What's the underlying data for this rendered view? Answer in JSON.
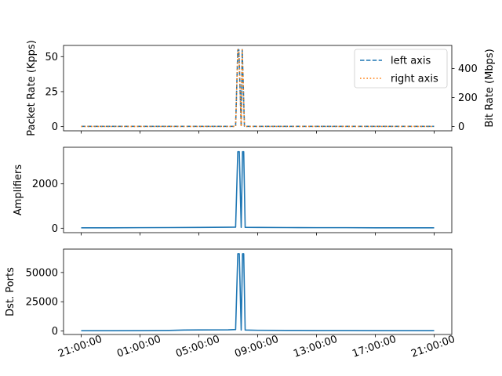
{
  "chart_data": [
    {
      "type": "line",
      "title": "",
      "xlabel": "",
      "ylabel": "Packet Rate (Kpps)",
      "y2label": "Bit Rate (Mbps)",
      "ylim": [
        -3,
        58
      ],
      "y2lim": [
        -30,
        560
      ],
      "yticks": [
        "0",
        "25",
        "50"
      ],
      "yticks_values": [
        0,
        25,
        50
      ],
      "y2ticks": [
        "0",
        "200",
        "400"
      ],
      "y2ticks_values": [
        0,
        200,
        400
      ],
      "legend_position": "top-right",
      "series": [
        {
          "name": "left axis",
          "axis": "left",
          "color": "#1f77b4",
          "style": "dashed",
          "x": [
            0,
            10.5,
            10.65,
            10.72,
            10.88,
            10.95,
            11.1,
            24
          ],
          "values": [
            0.2,
            0.2,
            55,
            55,
            0.2,
            55,
            0.2,
            0.2
          ]
        },
        {
          "name": "right axis",
          "axis": "right",
          "color": "#ff7f0e",
          "style": "dotted",
          "x": [
            0,
            10.5,
            10.65,
            10.72,
            10.88,
            10.95,
            11.1,
            24
          ],
          "values": [
            0,
            0,
            530,
            530,
            0,
            530,
            0,
            0
          ]
        }
      ]
    },
    {
      "type": "line",
      "title": "",
      "xlabel": "",
      "ylabel": "Amplifiers",
      "ylim": [
        -200,
        3650
      ],
      "yticks": [
        "0",
        "2000"
      ],
      "yticks_values": [
        0,
        2000
      ],
      "series": [
        {
          "color": "#1f77b4",
          "x": [
            0,
            2,
            4,
            6,
            8,
            10,
            10.5,
            10.65,
            10.75,
            10.88,
            10.97,
            11.05,
            11.15,
            12,
            14,
            16,
            18,
            20,
            22,
            24
          ],
          "values": [
            20,
            20,
            25,
            30,
            35,
            45,
            50,
            3450,
            3450,
            40,
            3450,
            3450,
            40,
            35,
            30,
            25,
            25,
            20,
            20,
            20
          ]
        }
      ]
    },
    {
      "type": "line",
      "title": "",
      "xlabel": "",
      "ylabel": "Dst. Ports",
      "ylim": [
        -3000,
        70000
      ],
      "yticks": [
        "0",
        "25000",
        "50000"
      ],
      "yticks_values": [
        0,
        25000,
        50000
      ],
      "xticks": [
        "21:00:00",
        "01:00:00",
        "05:00:00",
        "09:00:00",
        "13:00:00",
        "17:00:00",
        "21:00:00"
      ],
      "xticks_values": [
        0,
        4,
        8,
        12,
        16,
        20,
        24
      ],
      "series": [
        {
          "color": "#1f77b4",
          "x": [
            0,
            2,
            4,
            6,
            7,
            8,
            10,
            10.5,
            10.65,
            10.75,
            10.88,
            10.97,
            11.05,
            11.15,
            12,
            14,
            16,
            18,
            20,
            22,
            24
          ],
          "values": [
            200,
            200,
            300,
            500,
            800,
            900,
            1000,
            1200,
            66000,
            66000,
            800,
            66000,
            66000,
            800,
            600,
            500,
            400,
            400,
            300,
            300,
            300
          ]
        }
      ]
    }
  ]
}
